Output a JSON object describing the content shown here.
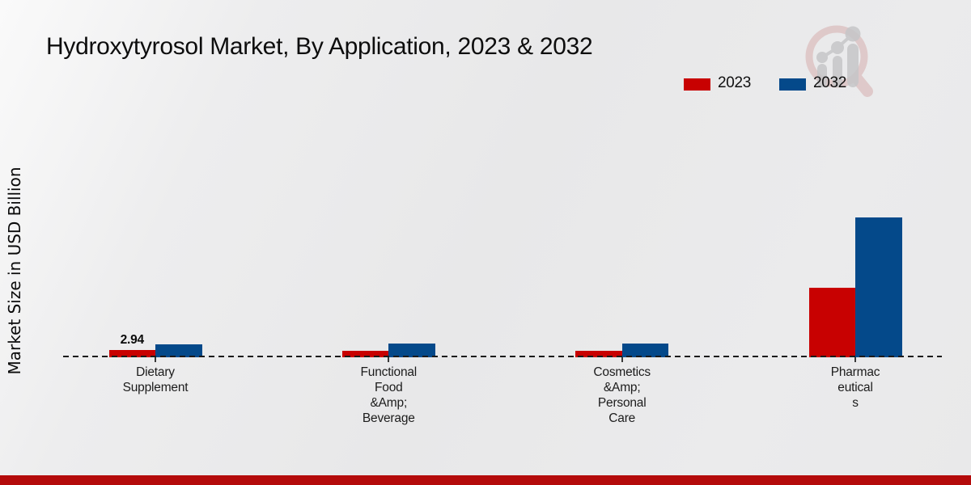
{
  "title": "Hydroxytyrosol Market, By Application, 2023 & 2032",
  "y_axis_label": "Market Size in USD Billion",
  "legend": [
    {
      "label": "2023",
      "color": "#c80101"
    },
    {
      "label": "2032",
      "color": "#04498a"
    }
  ],
  "colors": {
    "bar_2023": "#c80101",
    "bar_2032": "#04498a",
    "footer_red": "#b40b0b",
    "background": "#e9e9ea",
    "text": "#0d0d0d"
  },
  "watermark_icon": "magnifier-bar-chart-logo",
  "chart_data": {
    "type": "bar",
    "title": "Hydroxytyrosol Market, By Application, 2023 & 2032",
    "xlabel": "",
    "ylabel": "Market Size in USD Billion",
    "units": "USD Billion",
    "categories": [
      "Dietary Supplement",
      "Functional Food &Amp; Beverage",
      "Cosmetics &Amp; Personal Care",
      "Pharmaceuticals"
    ],
    "category_display_lines": [
      [
        "Dietary",
        "Supplement"
      ],
      [
        "Functional",
        "Food",
        "&Amp;",
        "Beverage"
      ],
      [
        "Cosmetics",
        "&Amp;",
        "Personal",
        "Care"
      ],
      [
        "Pharmac",
        "eutical",
        "s"
      ]
    ],
    "series": [
      {
        "name": "2023",
        "color": "#c80101",
        "values": [
          2.94,
          2.9,
          2.7,
          29.5
        ]
      },
      {
        "name": "2032",
        "color": "#04498a",
        "values": [
          5.6,
          6.0,
          5.8,
          59.5
        ]
      }
    ],
    "bar_labels": [
      {
        "series": "2023",
        "category": "Dietary Supplement",
        "text": "2.94"
      }
    ],
    "ylim": [
      0,
      65
    ],
    "grid": false,
    "baseline_style": "dashed",
    "legend_position": "top-right"
  }
}
